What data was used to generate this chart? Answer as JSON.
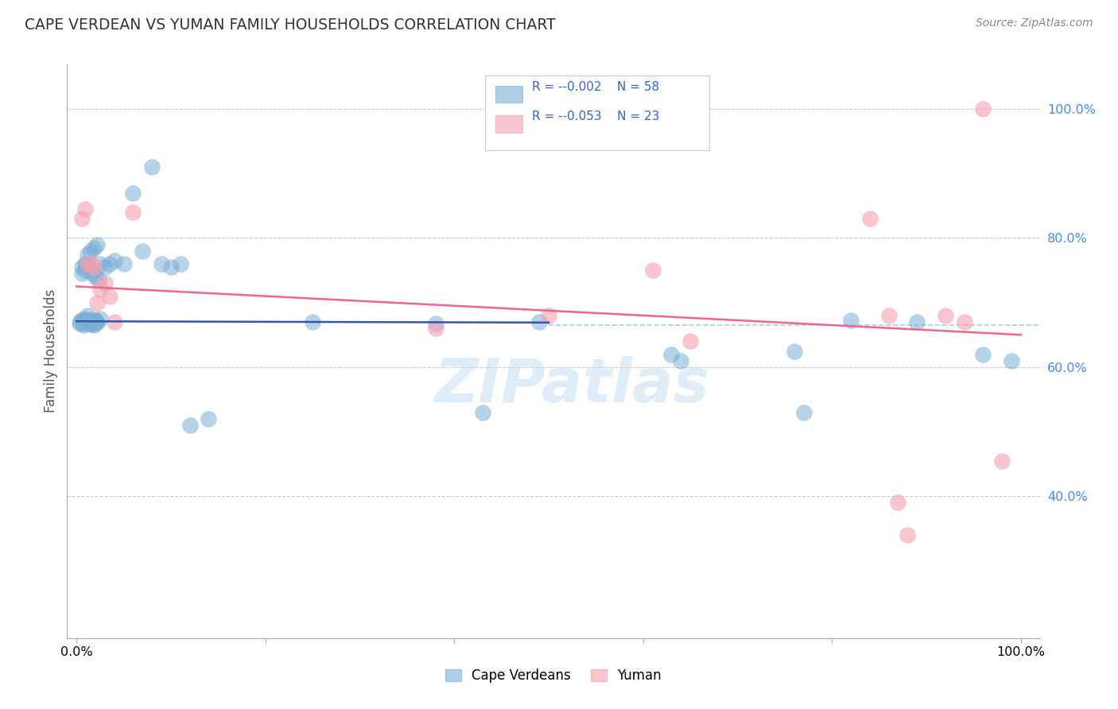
{
  "title": "CAPE VERDEAN VS YUMAN FAMILY HOUSEHOLDS CORRELATION CHART",
  "source": "Source: ZipAtlas.com",
  "ylabel": "Family Households",
  "blue_color": "#7bafd4",
  "pink_color": "#f4a0b0",
  "blue_line_color": "#3355aa",
  "pink_line_color": "#ee6688",
  "dashed_line_color": "#aaccee",
  "watermark": "ZIPatlas",
  "legend_blue_r": "-0.002",
  "legend_blue_n": "58",
  "legend_pink_r": "-0.053",
  "legend_pink_n": "23",
  "blue_x": [
    0.008,
    0.012,
    0.015,
    0.018,
    0.021,
    0.025,
    0.006,
    0.009,
    0.011,
    0.014,
    0.017,
    0.02,
    0.023,
    0.004,
    0.007,
    0.01,
    0.013,
    0.016,
    0.019,
    0.022,
    0.003,
    0.005,
    0.008,
    0.011,
    0.014,
    0.017,
    0.02,
    0.006,
    0.009,
    0.012,
    0.015,
    0.018,
    0.022,
    0.025,
    0.03,
    0.035,
    0.04,
    0.05,
    0.06,
    0.07,
    0.08,
    0.09,
    0.1,
    0.11,
    0.12,
    0.14,
    0.25,
    0.38,
    0.43,
    0.49,
    0.63,
    0.64,
    0.76,
    0.77,
    0.82,
    0.89,
    0.96,
    0.99
  ],
  "blue_y": [
    0.675,
    0.68,
    0.67,
    0.665,
    0.67,
    0.675,
    0.745,
    0.75,
    0.76,
    0.755,
    0.745,
    0.74,
    0.735,
    0.67,
    0.665,
    0.668,
    0.672,
    0.666,
    0.674,
    0.669,
    0.668,
    0.672,
    0.671,
    0.673,
    0.667,
    0.669,
    0.671,
    0.755,
    0.76,
    0.775,
    0.78,
    0.785,
    0.79,
    0.76,
    0.755,
    0.76,
    0.765,
    0.76,
    0.87,
    0.78,
    0.91,
    0.76,
    0.755,
    0.76,
    0.51,
    0.52,
    0.67,
    0.668,
    0.53,
    0.67,
    0.62,
    0.61,
    0.625,
    0.53,
    0.672,
    0.67,
    0.62,
    0.61
  ],
  "pink_x": [
    0.006,
    0.009,
    0.012,
    0.015,
    0.018,
    0.022,
    0.025,
    0.03,
    0.035,
    0.04,
    0.06,
    0.38,
    0.5,
    0.61,
    0.65,
    0.84,
    0.86,
    0.87,
    0.88,
    0.92,
    0.94,
    0.96,
    0.98
  ],
  "pink_y": [
    0.83,
    0.845,
    0.76,
    0.76,
    0.755,
    0.7,
    0.72,
    0.73,
    0.71,
    0.67,
    0.84,
    0.66,
    0.68,
    0.75,
    0.64,
    0.83,
    0.68,
    0.39,
    0.34,
    0.68,
    0.67,
    1.0,
    0.455
  ]
}
